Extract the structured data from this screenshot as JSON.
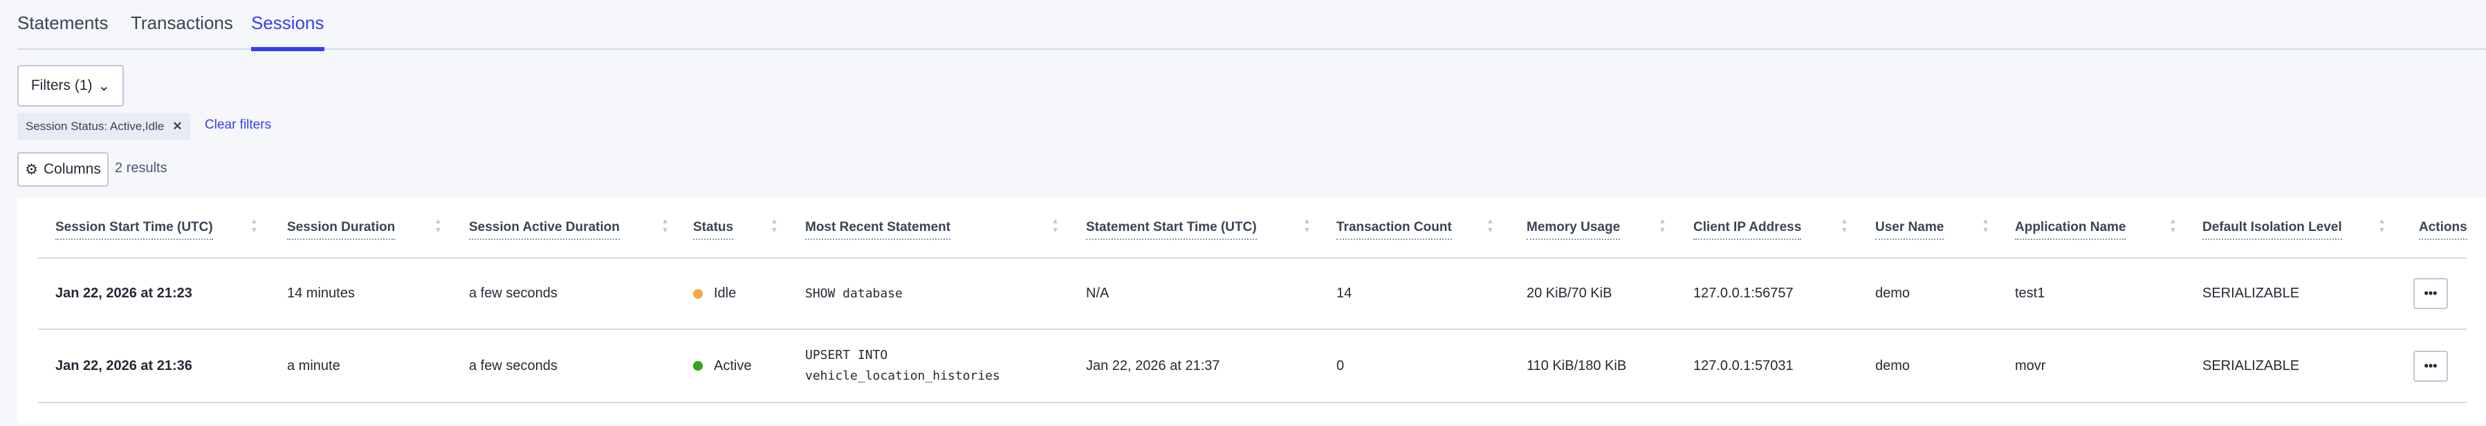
{
  "tabs": [
    "Statements",
    "Transactions",
    "Sessions"
  ],
  "active_tab": "Sessions",
  "filters_button": "Filters (1)",
  "filter_chip": "Session Status: Active,Idle",
  "clear_filters": "Clear filters",
  "columns_button": "Columns",
  "results_count": "2 results",
  "colors": {
    "accent": "#3a3ef0",
    "idle": "#f5a742",
    "active": "#37a21c"
  },
  "table": {
    "headers": [
      "Session Start Time (UTC)",
      "Session Duration",
      "Session Active Duration",
      "Status",
      "Most Recent Statement",
      "Statement Start Time (UTC)",
      "Transaction Count",
      "Memory Usage",
      "Client IP Address",
      "User Name",
      "Application Name",
      "Default Isolation Level",
      "Actions"
    ],
    "rows": [
      {
        "start": "Jan 22, 2026 at 21:23",
        "duration": "14 minutes",
        "active_duration": "a few seconds",
        "status": "Idle",
        "statement": "SHOW database",
        "stmt_start": "N/A",
        "txn_count": "14",
        "memory": "20 KiB/70 KiB",
        "ip": "127.0.0.1:56757",
        "user": "demo",
        "app": "test1",
        "isolation": "SERIALIZABLE",
        "actions": "•••"
      },
      {
        "start": "Jan 22, 2026 at 21:36",
        "duration": "a minute",
        "active_duration": "a few seconds",
        "status": "Active",
        "statement": "UPSERT INTO vehicle_location_histories",
        "stmt_start": "Jan 22, 2026 at 21:37",
        "txn_count": "0",
        "memory": "110 KiB/180 KiB",
        "ip": "127.0.0.1:57031",
        "user": "demo",
        "app": "movr",
        "isolation": "SERIALIZABLE",
        "actions": "•••"
      }
    ]
  }
}
